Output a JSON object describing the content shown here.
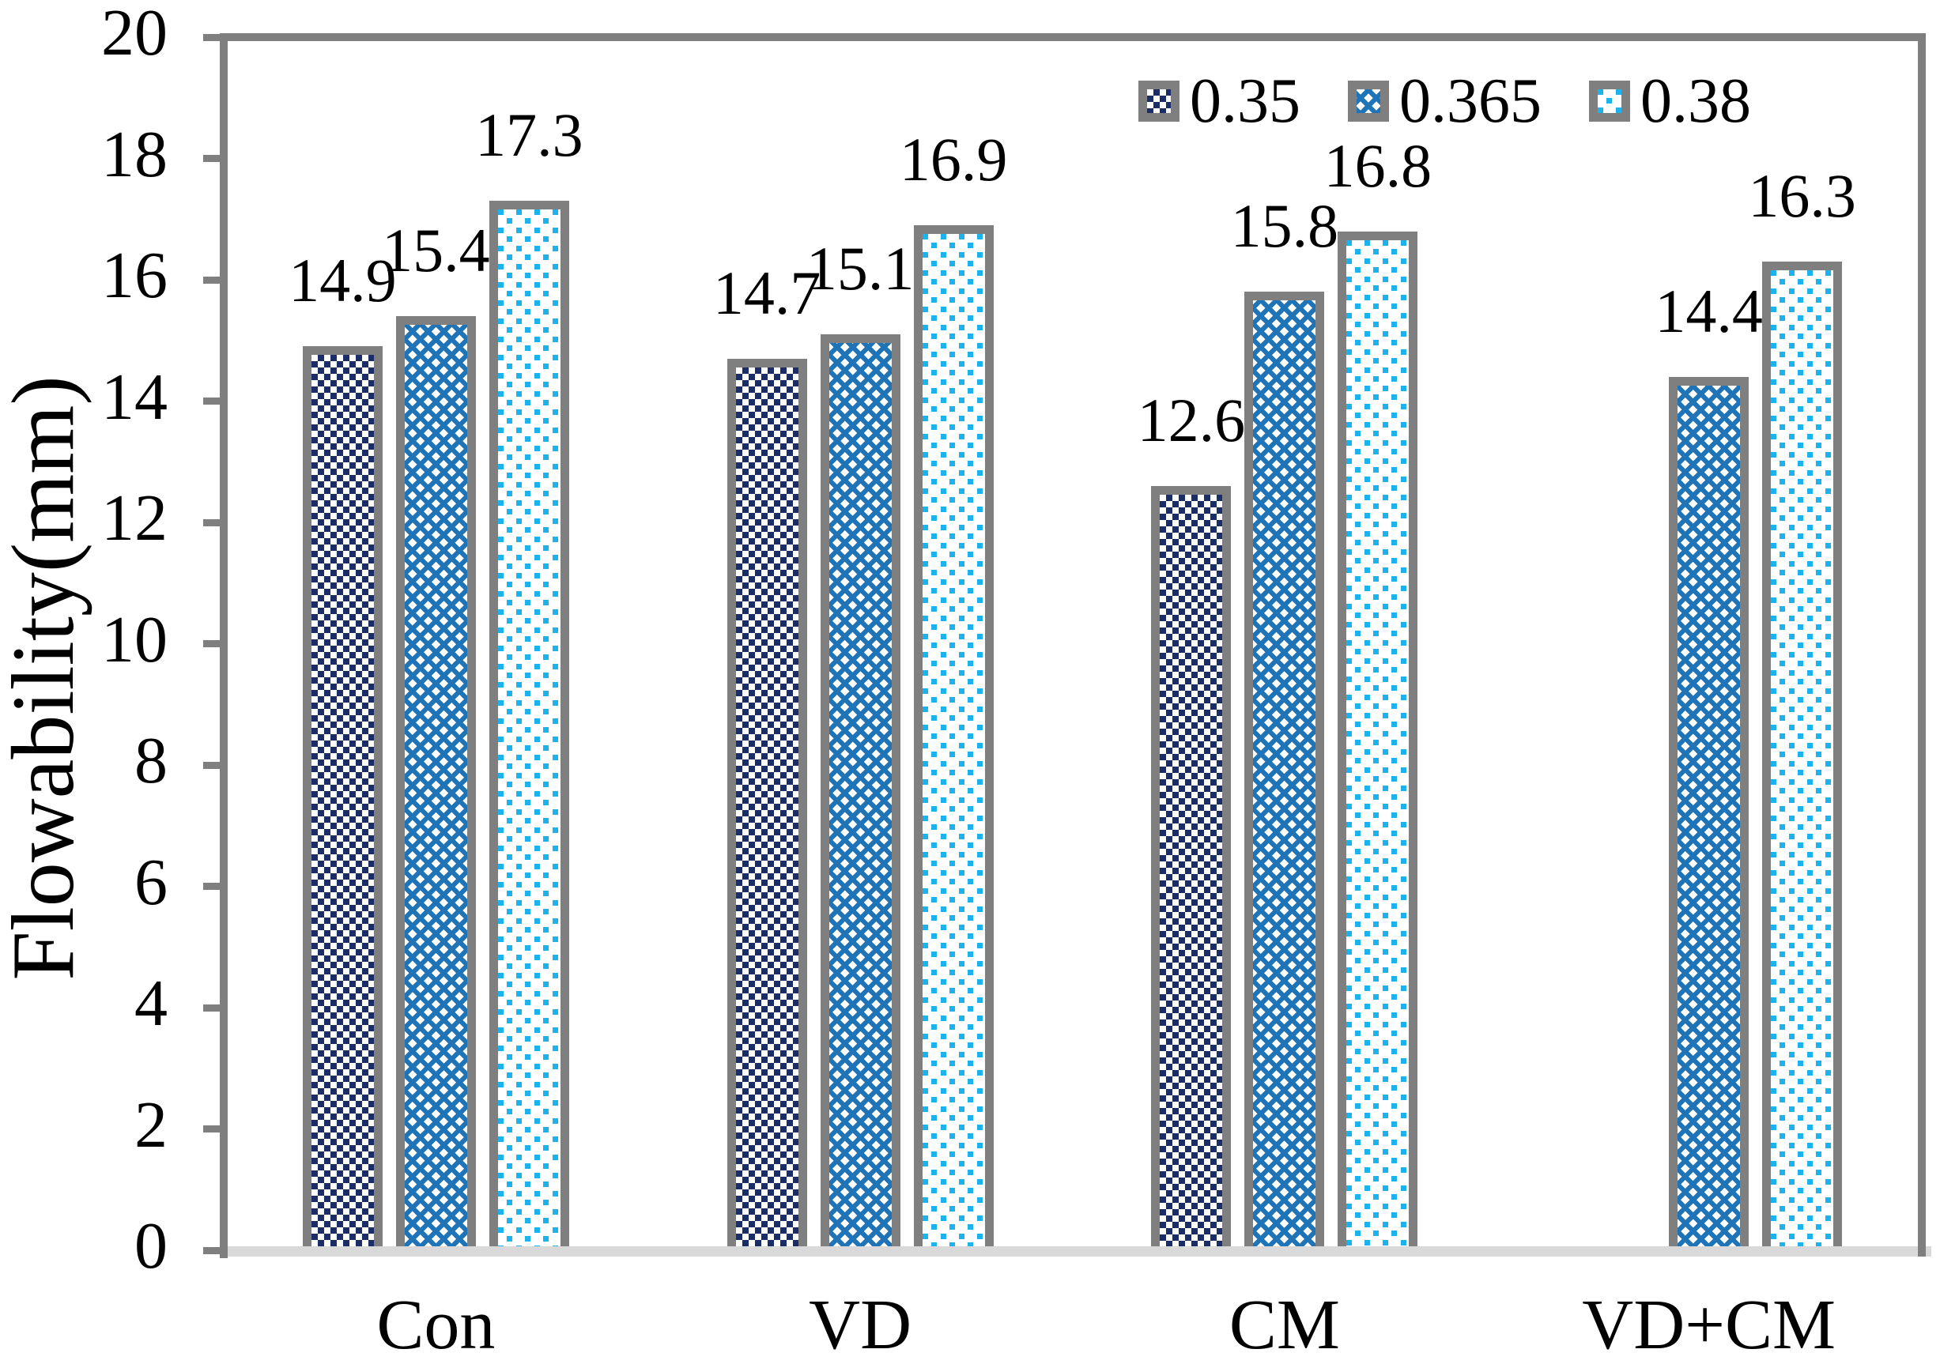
{
  "chart_data": {
    "type": "bar",
    "title": "",
    "ylabel": "Flowability(mm)",
    "xlabel": "",
    "ylim": [
      0,
      20
    ],
    "ytick_interval": 2,
    "ytick_labels": [
      "0",
      "2",
      "4",
      "6",
      "8",
      "10",
      "12",
      "14",
      "16",
      "18",
      "20"
    ],
    "grid": false,
    "legend_position": "top-right-inside",
    "categories": [
      "Con",
      "VD",
      "CM",
      "VD+CM"
    ],
    "series": [
      {
        "name": "0.35",
        "pattern": "checkerboard",
        "color": "#1B2D66",
        "values": [
          14.9,
          14.7,
          12.6,
          null
        ]
      },
      {
        "name": "0.365",
        "pattern": "trellis",
        "color": "#1F74B8",
        "values": [
          15.4,
          15.1,
          15.8,
          14.4
        ]
      },
      {
        "name": "0.38",
        "pattern": "dots",
        "color": "#1CB2EE",
        "values": [
          17.3,
          16.9,
          16.8,
          16.3
        ]
      }
    ],
    "data_labels": [
      [
        "14.9",
        "14.7",
        "12.6",
        null
      ],
      [
        "15.4",
        "15.1",
        "15.8",
        "14.4"
      ],
      [
        "17.3",
        "16.9",
        "16.8",
        "16.3"
      ]
    ]
  },
  "styles": {
    "axis_color": "#7F7F7F",
    "baseline_color": "#D9D9D9",
    "text_color": "#000000",
    "background": "#FFFFFF"
  }
}
